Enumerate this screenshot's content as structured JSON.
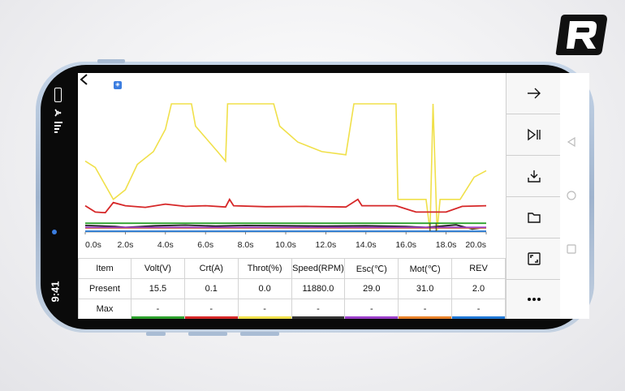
{
  "status_bar": {
    "time": "9:41"
  },
  "chart_data": {
    "type": "line",
    "x_ticks": [
      "0.0s",
      "2.0s",
      "4.0s",
      "6.0s",
      "8.0s",
      "10.0s",
      "12.0s",
      "14.0s",
      "16.0s",
      "18.0s",
      "20.0s"
    ],
    "xlim": [
      0,
      20
    ],
    "series": [
      {
        "color": "#f0e04a",
        "points": [
          [
            0,
            2.2
          ],
          [
            0.5,
            2.0
          ],
          [
            1.4,
            1.0
          ],
          [
            2.0,
            1.3
          ],
          [
            2.6,
            2.1
          ],
          [
            3.4,
            2.5
          ],
          [
            4.0,
            3.2
          ],
          [
            4.3,
            4.0
          ],
          [
            5.3,
            4.0
          ],
          [
            5.5,
            3.3
          ],
          [
            6.6,
            2.5
          ],
          [
            7.0,
            2.2
          ],
          [
            7.1,
            4.0
          ],
          [
            9.4,
            4.0
          ],
          [
            9.7,
            3.3
          ],
          [
            10.6,
            2.8
          ],
          [
            11.8,
            2.5
          ],
          [
            13.0,
            2.4
          ],
          [
            13.4,
            4.0
          ],
          [
            15.5,
            4.0
          ],
          [
            15.6,
            1.0
          ],
          [
            17.0,
            1.0
          ],
          [
            17.2,
            0.0
          ],
          [
            17.35,
            4.0
          ],
          [
            17.55,
            0.0
          ],
          [
            17.7,
            1.0
          ],
          [
            18.7,
            1.0
          ],
          [
            19.4,
            1.7
          ],
          [
            20.0,
            1.9
          ]
        ]
      },
      {
        "color": "#2ca02c",
        "points": [
          [
            0,
            0.25
          ],
          [
            20,
            0.25
          ]
        ]
      },
      {
        "color": "#222222",
        "points": [
          [
            0,
            0.18
          ],
          [
            1.5,
            0.15
          ],
          [
            2.0,
            0.12
          ],
          [
            3.5,
            0.17
          ],
          [
            5.0,
            0.19
          ],
          [
            6.5,
            0.16
          ],
          [
            8.0,
            0.18
          ],
          [
            10.0,
            0.17
          ],
          [
            12.0,
            0.16
          ],
          [
            14.0,
            0.17
          ],
          [
            16.0,
            0.15
          ],
          [
            17.0,
            0.12
          ],
          [
            18.5,
            0.2
          ],
          [
            19.3,
            0.07
          ],
          [
            20.0,
            0.12
          ]
        ]
      },
      {
        "color": "#e8822a",
        "points": [
          [
            0,
            0.1
          ],
          [
            20,
            0.1
          ]
        ]
      },
      {
        "color": "#9b3fc9",
        "points": [
          [
            0,
            0.12
          ],
          [
            20,
            0.12
          ]
        ]
      },
      {
        "color": "#d62728",
        "points": [
          [
            0,
            0.8
          ],
          [
            0.5,
            0.6
          ],
          [
            1.0,
            0.58
          ],
          [
            1.4,
            0.9
          ],
          [
            2.0,
            0.8
          ],
          [
            3.0,
            0.75
          ],
          [
            4.0,
            0.85
          ],
          [
            5.0,
            0.78
          ],
          [
            6.0,
            0.8
          ],
          [
            7.0,
            0.76
          ],
          [
            7.2,
            1.0
          ],
          [
            7.4,
            0.8
          ],
          [
            9.0,
            0.77
          ],
          [
            11.0,
            0.78
          ],
          [
            13.0,
            0.76
          ],
          [
            13.6,
            1.0
          ],
          [
            13.8,
            0.8
          ],
          [
            15.5,
            0.8
          ],
          [
            16.5,
            0.6
          ],
          [
            17.2,
            0.6
          ],
          [
            18.0,
            0.6
          ],
          [
            18.8,
            0.78
          ],
          [
            20.0,
            0.8
          ]
        ]
      },
      {
        "color": "#1f77d4",
        "points": [
          [
            0,
            0.0
          ],
          [
            20,
            0.0
          ]
        ]
      }
    ]
  },
  "table": {
    "headers": [
      "Item",
      "Volt(V)",
      "Crt(A)",
      "Throt(%)",
      "Speed(RPM)",
      "Esc(℃)",
      "Mot(℃)",
      "REV"
    ],
    "present": [
      "Present",
      "15.5",
      "0.1",
      "0.0",
      "11880.0",
      "29.0",
      "31.0",
      "2.0"
    ],
    "max": [
      "Max",
      "-",
      "-",
      "-",
      "-",
      "-",
      "-",
      "-"
    ],
    "swatches": [
      "#2ca02c",
      "#d62728",
      "#f0e04a",
      "#333333",
      "#9b3fc9",
      "#e8822a",
      "#1f77d4"
    ]
  },
  "toolbar": {
    "items": [
      {
        "icon": "arrow-right-icon"
      },
      {
        "icon": "play-pause-icon"
      },
      {
        "icon": "download-icon"
      },
      {
        "icon": "folder-icon"
      },
      {
        "icon": "expand-icon"
      },
      {
        "icon": "more-icon"
      }
    ]
  }
}
